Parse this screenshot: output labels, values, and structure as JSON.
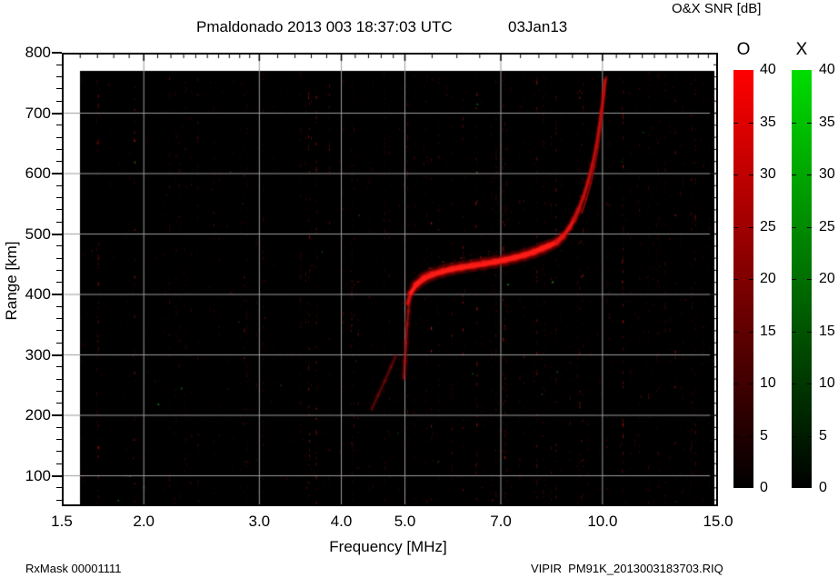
{
  "header": {
    "title_left": "Pmaldonado 2013 003 18:37:03 UTC",
    "title_right": "03Jan13",
    "colorbar_title": "O&X SNR [dB]"
  },
  "axes": {
    "x_label": "Frequency [MHz]",
    "y_label": "Range [km]",
    "x_scale": "log",
    "x_range": [
      1.5,
      15.0
    ],
    "y_range": [
      50,
      800
    ],
    "x_tick_values": [
      1.5,
      2.0,
      3.0,
      4.0,
      5.0,
      7.0,
      10.0,
      15.0
    ],
    "x_tick_labels": [
      "1.5",
      "2.0",
      "3.0",
      "4.0",
      "5.0",
      "7.0",
      "10.0",
      "15.0"
    ],
    "x_minor_ticks": [
      1.6,
      1.7,
      1.8,
      1.9,
      2.1,
      2.2,
      2.3,
      2.4,
      2.5,
      2.6,
      2.7,
      2.8,
      2.9,
      3.2,
      3.4,
      3.6,
      3.8,
      4.2,
      4.4,
      4.6,
      4.8,
      5.5,
      6.0,
      6.5,
      7.5,
      8.0,
      8.5,
      9.0,
      9.5,
      10.5,
      11.0,
      11.5,
      12.0,
      12.5,
      13.0,
      13.5,
      14.0,
      14.5
    ],
    "y_tick_values": [
      100,
      200,
      300,
      400,
      500,
      600,
      700,
      800
    ],
    "y_tick_labels": [
      "100",
      "200",
      "300",
      "400",
      "500",
      "600",
      "700",
      "800"
    ],
    "y_minor_step": 20
  },
  "colorbars": {
    "min": 0,
    "max": 40,
    "o": {
      "header": "O",
      "top_color": "#ff0000",
      "bottom_color": "#000000",
      "tick_labels": [
        "40",
        "35",
        "30",
        "25",
        "20",
        "15",
        "10",
        "5",
        "0"
      ]
    },
    "x": {
      "header": "X",
      "top_color": "#00dd00",
      "bottom_color": "#000000",
      "tick_labels": [
        "40",
        "35",
        "30",
        "25",
        "20",
        "15",
        "10",
        "5",
        "0"
      ]
    }
  },
  "footer": {
    "left": "RxMask 00001111",
    "right": "VIPIR  PM91K_2013003183703.RIQ"
  },
  "chart_data": {
    "type": "heatmap",
    "title": "Pmaldonado 2013 003 18:37:03 UTC 03Jan13",
    "xlabel": "Frequency [MHz]",
    "ylabel": "Range [km]",
    "x_scale": "log",
    "xlim": [
      1.5,
      15.0
    ],
    "ylim": [
      50,
      800
    ],
    "grid_x": [
      2,
      3,
      4,
      5,
      7,
      10
    ],
    "grid_y": [
      100,
      200,
      300,
      400,
      500,
      600,
      700
    ],
    "background": "#000000",
    "colorbar": {
      "label": "O&X SNR [dB]",
      "min": 0,
      "max": 40,
      "tick_step": 5,
      "o_top_color": "#ff0000",
      "x_top_color": "#00dd00",
      "bottom_color": "#000000"
    },
    "data_extent": {
      "f_min": 1.6,
      "f_max": 14.9,
      "range_min": 50,
      "range_max": 770
    },
    "o_trace_main_f_km": [
      [
        5.05,
        385
      ],
      [
        5.1,
        402
      ],
      [
        5.2,
        416
      ],
      [
        5.35,
        427
      ],
      [
        5.5,
        433
      ],
      [
        5.7,
        438
      ],
      [
        5.9,
        442
      ],
      [
        6.1,
        445
      ],
      [
        6.35,
        448
      ],
      [
        6.6,
        451
      ],
      [
        6.85,
        454
      ],
      [
        7.1,
        457
      ],
      [
        7.35,
        461
      ],
      [
        7.6,
        465
      ],
      [
        7.85,
        470
      ],
      [
        8.1,
        476
      ],
      [
        8.3,
        481
      ],
      [
        8.5,
        486
      ],
      [
        8.7,
        496
      ],
      [
        8.9,
        510
      ],
      [
        9.05,
        524
      ],
      [
        9.2,
        541
      ],
      [
        9.35,
        561
      ],
      [
        9.5,
        585
      ],
      [
        9.65,
        614
      ],
      [
        9.78,
        645
      ],
      [
        9.88,
        675
      ],
      [
        9.96,
        703
      ],
      [
        10.03,
        730
      ],
      [
        10.09,
        755
      ]
    ],
    "o_trace_riser_f_km": [
      [
        4.98,
        262
      ],
      [
        5.0,
        290
      ],
      [
        5.02,
        320
      ],
      [
        5.04,
        350
      ],
      [
        5.06,
        372
      ],
      [
        5.08,
        390
      ]
    ],
    "o_trace_lower_f_km": [
      [
        4.45,
        210
      ],
      [
        4.55,
        233
      ],
      [
        4.66,
        257
      ],
      [
        4.76,
        280
      ],
      [
        4.84,
        298
      ]
    ],
    "o_trace_echo_f_km": [
      [
        9.3,
        535
      ],
      [
        9.45,
        558
      ],
      [
        9.6,
        584
      ],
      [
        9.73,
        612
      ],
      [
        9.85,
        645
      ],
      [
        9.94,
        678
      ],
      [
        10.02,
        710
      ],
      [
        10.08,
        738
      ],
      [
        10.13,
        760
      ]
    ],
    "noise": {
      "seed": 20130103,
      "columns": 170,
      "scatter_dots": 430,
      "green_dots": 26
    }
  }
}
